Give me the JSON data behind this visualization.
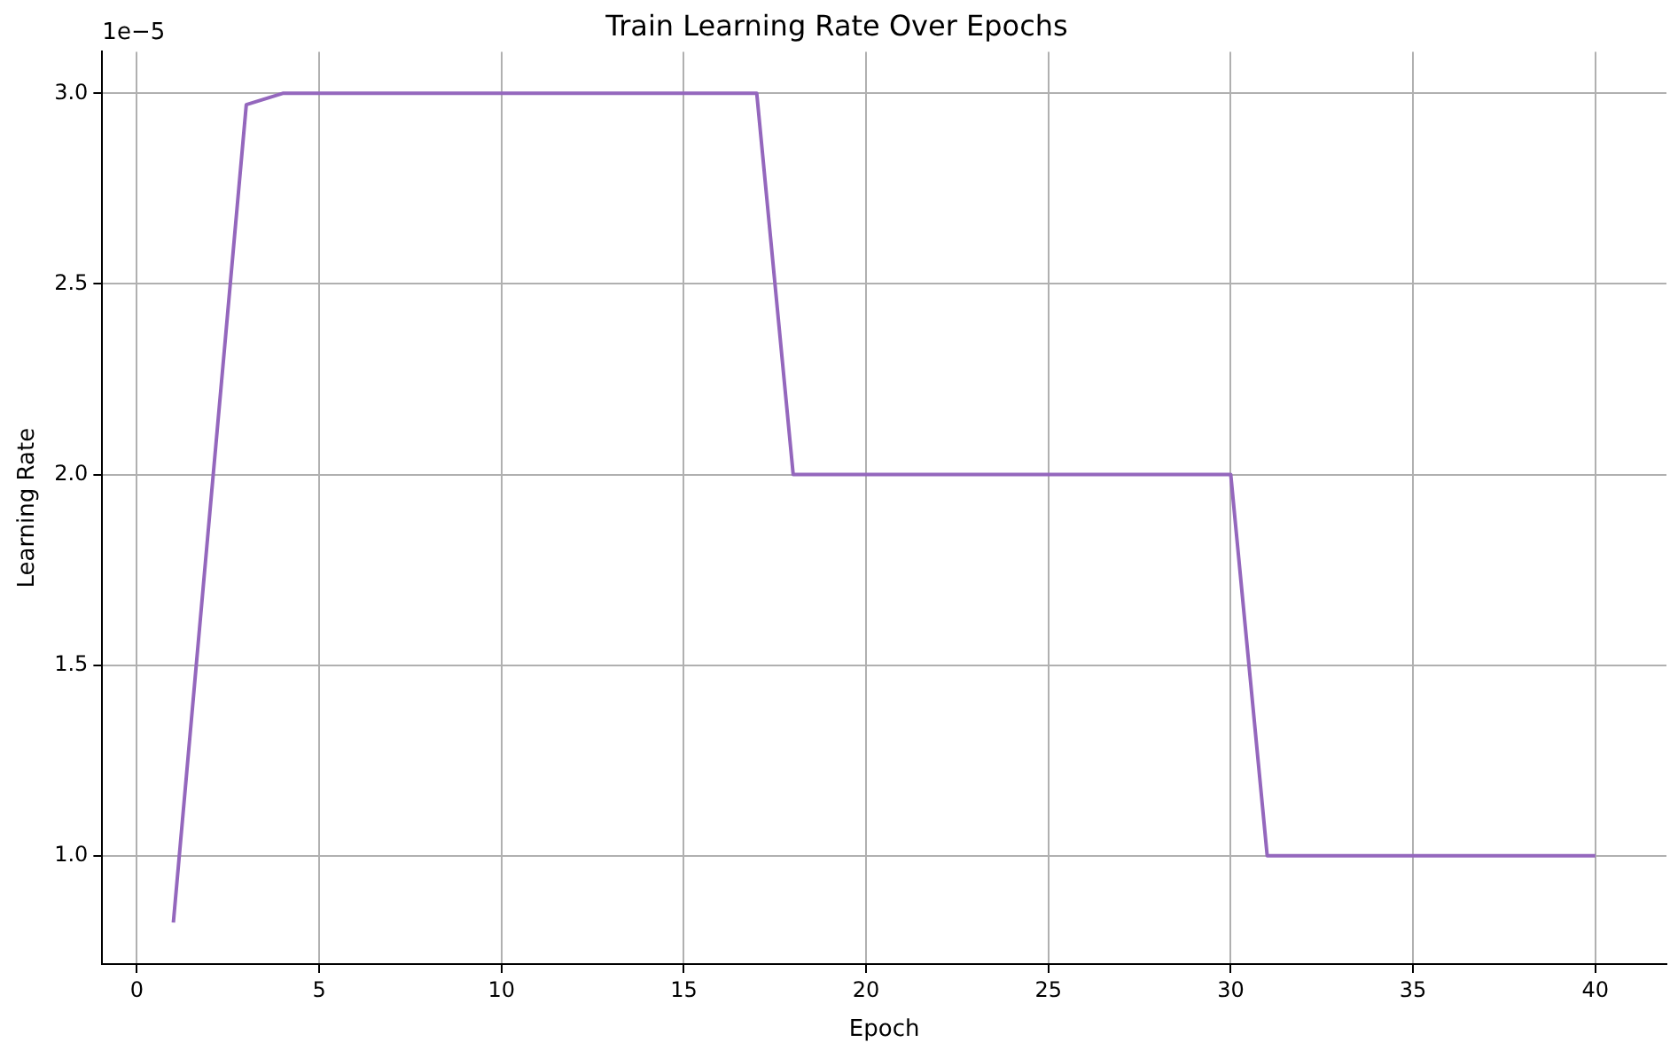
{
  "chart_data": {
    "type": "line",
    "title": "Train Learning Rate Over Epochs",
    "xlabel": "Epoch",
    "ylabel": "Learning Rate",
    "annotations": [
      "1e−5"
    ],
    "x": [
      1,
      2,
      3,
      4,
      5,
      6,
      7,
      8,
      9,
      10,
      11,
      12,
      13,
      14,
      15,
      16,
      17,
      18,
      19,
      20,
      21,
      22,
      23,
      24,
      25,
      26,
      27,
      28,
      29,
      30,
      31,
      32,
      33,
      34,
      35,
      36,
      37,
      38,
      39,
      40
    ],
    "series": [
      {
        "color": "#9467bd",
        "values": [
          0.825,
          1.9,
          2.97,
          3.0,
          3.0,
          3.0,
          3.0,
          3.0,
          3.0,
          3.0,
          3.0,
          3.0,
          3.0,
          3.0,
          3.0,
          3.0,
          3.0,
          2.0,
          2.0,
          2.0,
          2.0,
          2.0,
          2.0,
          2.0,
          2.0,
          2.0,
          2.0,
          2.0,
          2.0,
          2.0,
          1.0,
          1.0,
          1.0,
          1.0,
          1.0,
          1.0,
          1.0,
          1.0,
          1.0,
          1.0
        ]
      }
    ],
    "xlim": [
      -0.95,
      41.95
    ],
    "xticks": [
      0,
      5,
      10,
      15,
      20,
      25,
      30,
      35,
      40
    ],
    "ylim": [
      0.716,
      3.109
    ],
    "yticks": [
      {
        "value": 1,
        "label": "1.0"
      },
      {
        "value": 1.5,
        "label": "1.5"
      },
      {
        "value": 2,
        "label": "2.0"
      },
      {
        "value": 2.5,
        "label": "2.5"
      },
      {
        "value": 3,
        "label": "3.0"
      }
    ],
    "grid": true,
    "legend": false,
    "marker": "none",
    "line_style": "solid"
  }
}
